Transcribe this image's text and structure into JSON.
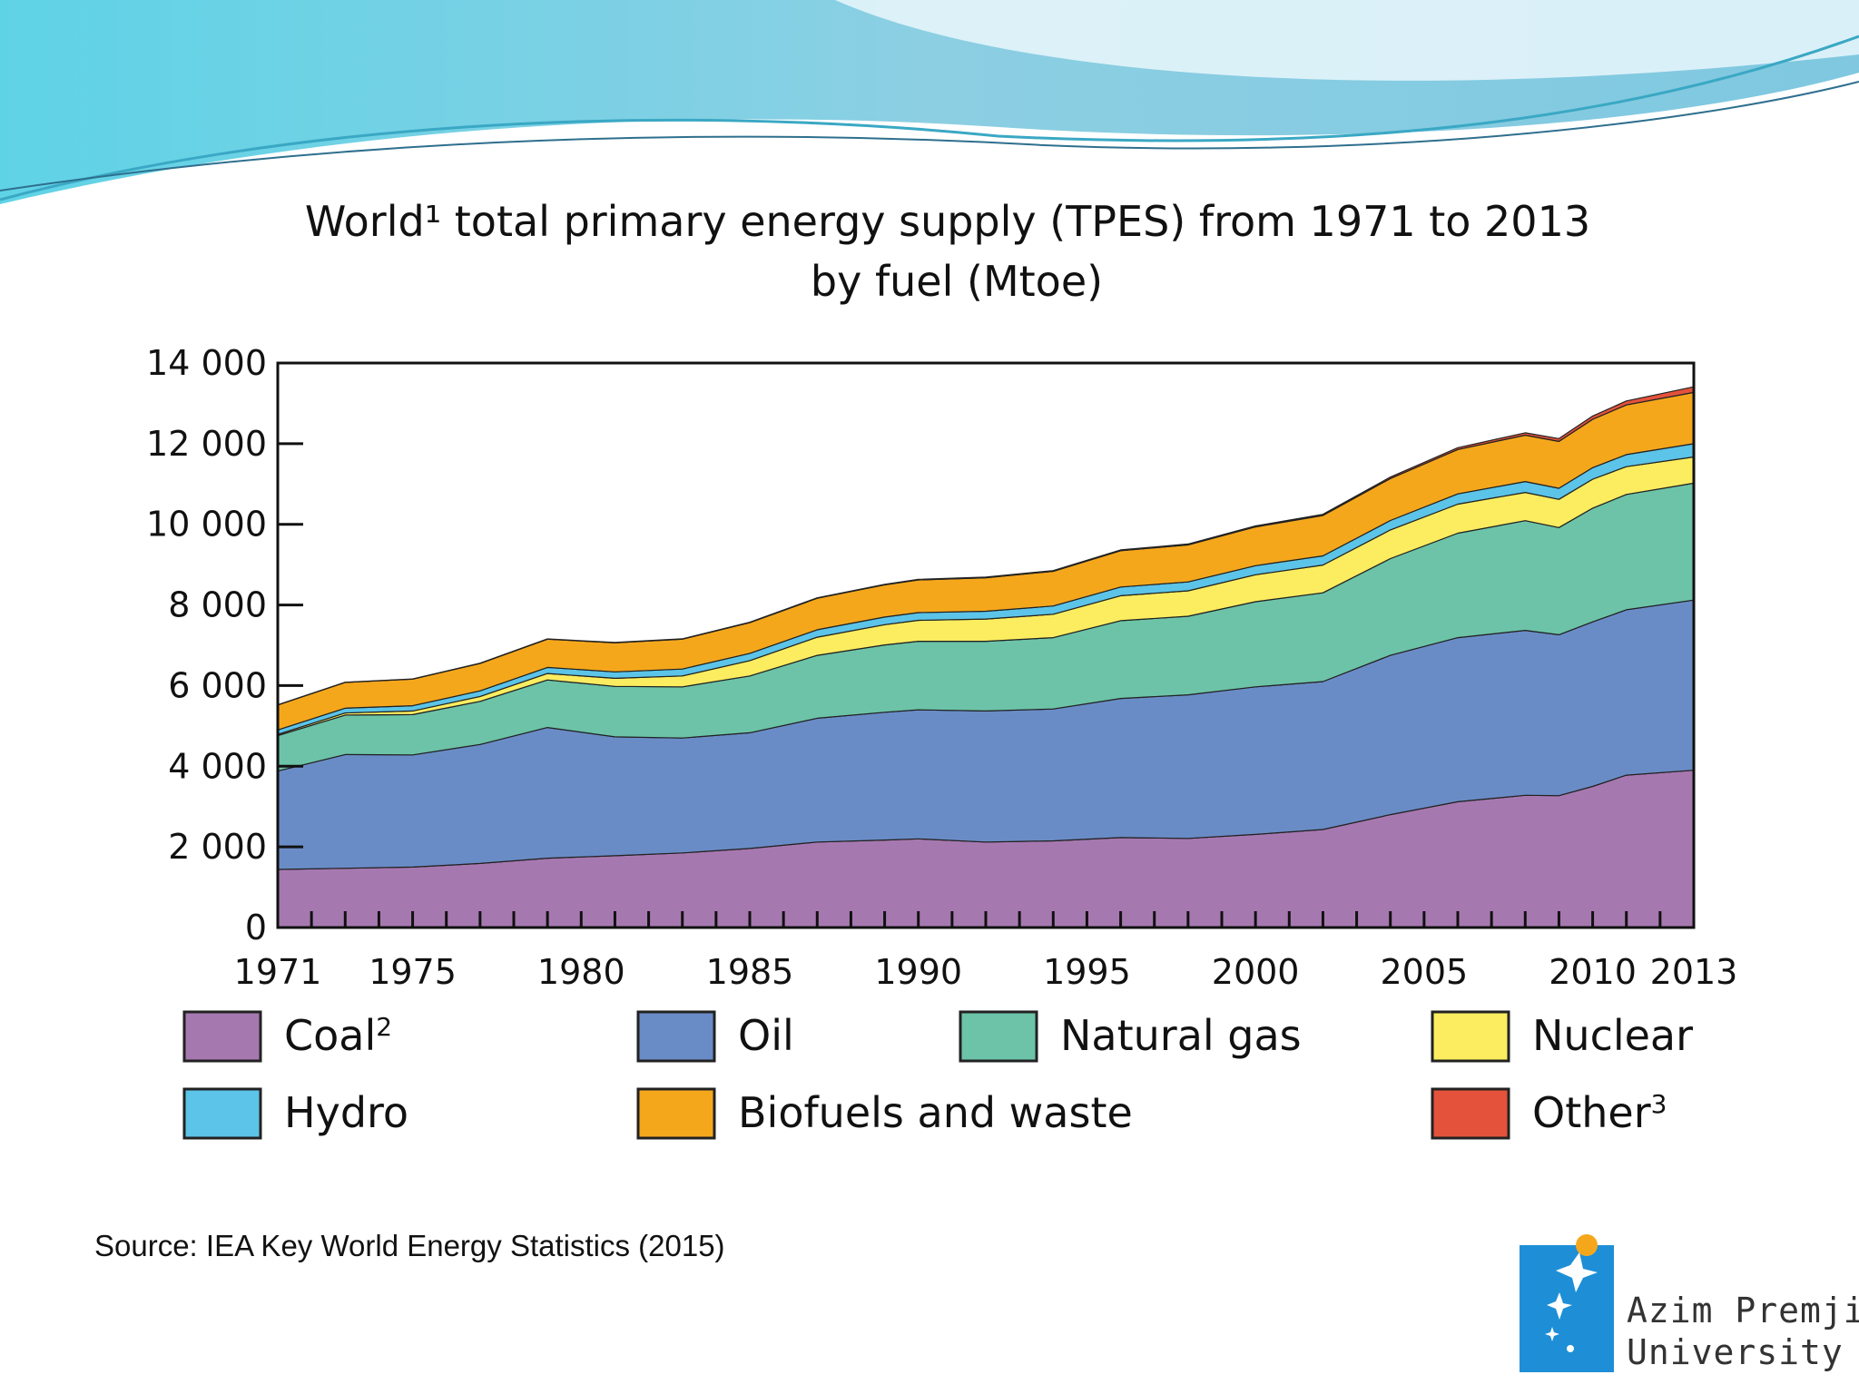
{
  "slide": {
    "source_text": "Source: IEA Key World Energy Statistics (2015)",
    "logo": {
      "line1": "Azim Premji",
      "line2": "University",
      "icon": "flower-star-logo-icon"
    }
  },
  "chart_data": {
    "type": "area",
    "stacked": true,
    "title": "World¹ total primary energy supply (TPES) from 1971 to 2013",
    "subtitle": "by fuel (Mtoe)",
    "xlabel": "",
    "ylabel": "",
    "xlim": [
      1971,
      2013
    ],
    "ylim": [
      0,
      14000
    ],
    "x_ticks": [
      1971,
      1975,
      1980,
      1985,
      1990,
      1995,
      2000,
      2005,
      2010,
      2013
    ],
    "x_tick_labels": [
      "1971",
      "1975",
      "1980",
      "1985",
      "1990",
      "1995",
      "2000",
      "2005",
      "2010",
      "2013"
    ],
    "y_ticks": [
      0,
      2000,
      4000,
      6000,
      8000,
      10000,
      12000,
      14000
    ],
    "y_tick_labels": [
      "0",
      "2 000",
      "4 000",
      "6 000",
      "8 000",
      "10 000",
      "12 000",
      "14 000"
    ],
    "grid": false,
    "legend_position": "bottom",
    "x": [
      1971,
      1973,
      1975,
      1977,
      1979,
      1981,
      1983,
      1985,
      1987,
      1989,
      1990,
      1992,
      1994,
      1996,
      1998,
      2000,
      2002,
      2004,
      2006,
      2008,
      2009,
      2010,
      2011,
      2013
    ],
    "series": [
      {
        "name": "Coal",
        "legend_label": "Coal",
        "legend_sup": "2",
        "color": "#a678b0",
        "values": [
          1440,
          1470,
          1500,
          1590,
          1720,
          1780,
          1850,
          1960,
          2120,
          2170,
          2200,
          2120,
          2150,
          2230,
          2210,
          2310,
          2430,
          2800,
          3120,
          3280,
          3270,
          3500,
          3780,
          3900
        ]
      },
      {
        "name": "Oil",
        "legend_label": "Oil",
        "legend_sup": "",
        "color": "#6a8cc6",
        "values": [
          2440,
          2820,
          2780,
          2950,
          3240,
          2950,
          2850,
          2870,
          3070,
          3170,
          3200,
          3250,
          3270,
          3450,
          3560,
          3660,
          3670,
          3950,
          4070,
          4090,
          3990,
          4080,
          4100,
          4220
        ]
      },
      {
        "name": "Natural gas",
        "legend_label": "Natural gas",
        "legend_sup": "",
        "color": "#6cc3a8",
        "values": [
          880,
          980,
          1000,
          1070,
          1180,
          1250,
          1270,
          1410,
          1560,
          1670,
          1700,
          1730,
          1770,
          1930,
          1950,
          2110,
          2200,
          2400,
          2590,
          2720,
          2660,
          2820,
          2860,
          2900
        ]
      },
      {
        "name": "Nuclear",
        "legend_label": "Nuclear",
        "legend_sup": "",
        "color": "#fbed5f",
        "values": [
          30,
          50,
          90,
          120,
          160,
          200,
          270,
          380,
          450,
          500,
          520,
          550,
          580,
          620,
          630,
          670,
          690,
          710,
          720,
          700,
          700,
          720,
          690,
          650
        ]
      },
      {
        "name": "Hydro",
        "legend_label": "Hydro",
        "legend_sup": "",
        "color": "#5bc4e8",
        "values": [
          110,
          120,
          130,
          140,
          150,
          160,
          170,
          180,
          185,
          190,
          190,
          195,
          205,
          215,
          220,
          225,
          228,
          235,
          255,
          270,
          275,
          285,
          300,
          330
        ]
      },
      {
        "name": "Biofuels and waste",
        "legend_label": "Biofuels and waste",
        "legend_sup": "",
        "color": "#f5a71c",
        "values": [
          620,
          640,
          660,
          680,
          700,
          720,
          740,
          760,
          780,
          800,
          810,
          830,
          860,
          900,
          920,
          960,
          1000,
          1040,
          1100,
          1150,
          1160,
          1200,
          1230,
          1270
        ]
      },
      {
        "name": "Other",
        "legend_label": "Other",
        "legend_sup": "3",
        "color": "#e4523b",
        "values": [
          4,
          5,
          6,
          7,
          8,
          9,
          10,
          11,
          12,
          13,
          14,
          15,
          18,
          20,
          22,
          25,
          30,
          35,
          45,
          60,
          70,
          80,
          100,
          140
        ]
      }
    ]
  }
}
